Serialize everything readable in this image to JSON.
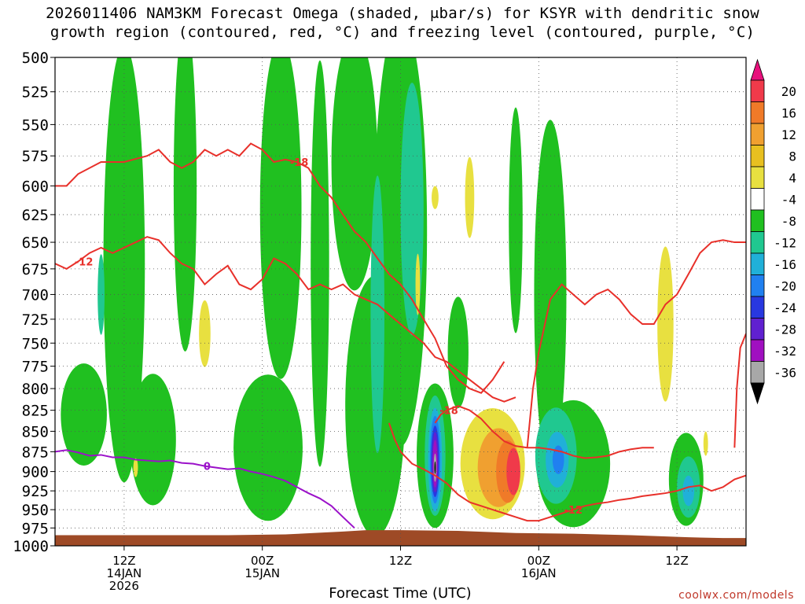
{
  "title_line1": "2026011406 NAM3KM Forecast Omega (shaded, μbar/s) for KSYR with dendritic snow",
  "title_line2": "growth region (contoured, red, °C) and freezing level (contoured, purple, °C)",
  "watermark": "coolwx.com/models",
  "colors": {
    "dendritic_contour": "#e8302a",
    "freezing_contour": "#9b11c9",
    "terrain": "#9e4a26",
    "grid": "#555555"
  },
  "chart_data": {
    "type": "heatmap",
    "xlabel": "Forecast Time (UTC)",
    "ylabel": "",
    "x_units": "forecast hour from 2026-01-14 06Z",
    "xlim": [
      0,
      60
    ],
    "ylim": [
      1000,
      500
    ],
    "y_ticks": [
      500,
      525,
      550,
      575,
      600,
      625,
      650,
      675,
      700,
      725,
      750,
      775,
      800,
      825,
      850,
      875,
      900,
      925,
      950,
      975,
      1000
    ],
    "x_ticks": [
      {
        "value": 6,
        "lines": [
          "12Z",
          "14JAN",
          "2026"
        ]
      },
      {
        "value": 18,
        "lines": [
          "00Z",
          "15JAN"
        ]
      },
      {
        "value": 30,
        "lines": [
          "12Z"
        ]
      },
      {
        "value": 42,
        "lines": [
          "00Z",
          "16JAN"
        ]
      },
      {
        "value": 54,
        "lines": [
          "12Z"
        ]
      }
    ],
    "colorbar": {
      "labels": [
        "20",
        "16",
        "12",
        "8",
        "4",
        "-4",
        "-8",
        "-12",
        "-16",
        "-20",
        "-24",
        "-28",
        "-32",
        "-36"
      ],
      "colors": [
        "#f03a4a",
        "#f07a28",
        "#f0a030",
        "#e8c020",
        "#e8e040",
        "#ffffff",
        "#20c020",
        "#20c890",
        "#20b0d8",
        "#2080f0",
        "#2838e0",
        "#6020d0",
        "#a010c0",
        "#a8a8a8"
      ],
      "top_color": "#e8107c",
      "bottom_color": "#000000"
    },
    "omega_regions": [
      {
        "value": -6,
        "x": 6.0,
        "p": 670,
        "rx": 1.8,
        "rp": 260
      },
      {
        "value": -6,
        "x": 11.3,
        "p": 600,
        "rx": 1.0,
        "rp": 200
      },
      {
        "value": -6,
        "x": 19.6,
        "p": 620,
        "rx": 1.8,
        "rp": 190
      },
      {
        "value": -6,
        "x": 23.0,
        "p": 670,
        "rx": 0.8,
        "rp": 220
      },
      {
        "value": -6,
        "x": 26.0,
        "p": 580,
        "rx": 2.0,
        "rp": 140
      },
      {
        "value": -6,
        "x": 27.8,
        "p": 820,
        "rx": 2.6,
        "rp": 150
      },
      {
        "value": -6,
        "x": 30.0,
        "p": 640,
        "rx": 2.3,
        "rp": 280
      },
      {
        "value": -6,
        "x": 18.5,
        "p": 870,
        "rx": 3.0,
        "rp": 90
      },
      {
        "value": -6,
        "x": 8.5,
        "p": 860,
        "rx": 2.0,
        "rp": 80
      },
      {
        "value": -6,
        "x": 2.5,
        "p": 830,
        "rx": 2.0,
        "rp": 60
      },
      {
        "value": -6,
        "x": 35.0,
        "p": 760,
        "rx": 0.9,
        "rp": 60
      },
      {
        "value": -6,
        "x": 40.0,
        "p": 630,
        "rx": 0.6,
        "rp": 100
      },
      {
        "value": -6,
        "x": 43.0,
        "p": 700,
        "rx": 1.4,
        "rp": 170
      },
      {
        "value": -6,
        "x": 45.0,
        "p": 890,
        "rx": 3.2,
        "rp": 80
      },
      {
        "value": -6,
        "x": 54.8,
        "p": 910,
        "rx": 1.5,
        "rp": 60
      },
      {
        "value": -6,
        "x": 33.0,
        "p": 880,
        "rx": 1.6,
        "rp": 90
      },
      {
        "value": -10,
        "x": 31.0,
        "p": 620,
        "rx": 1.0,
        "rp": 110
      },
      {
        "value": -10,
        "x": 28.0,
        "p": 720,
        "rx": 0.6,
        "rp": 140
      },
      {
        "value": -10,
        "x": 4.0,
        "p": 700,
        "rx": 0.3,
        "rp": 40
      },
      {
        "value": -10,
        "x": 43.5,
        "p": 880,
        "rx": 1.8,
        "rp": 60
      },
      {
        "value": -10,
        "x": 55.0,
        "p": 920,
        "rx": 1.0,
        "rp": 40
      },
      {
        "value": -10,
        "x": 33.0,
        "p": 880,
        "rx": 0.9,
        "rp": 75
      },
      {
        "value": -14,
        "x": 43.6,
        "p": 885,
        "rx": 1.0,
        "rp": 35
      },
      {
        "value": -14,
        "x": 33.0,
        "p": 885,
        "rx": 0.6,
        "rp": 65
      },
      {
        "value": -14,
        "x": 55.0,
        "p": 925,
        "rx": 0.5,
        "rp": 20
      },
      {
        "value": -18,
        "x": 43.7,
        "p": 885,
        "rx": 0.5,
        "rp": 18
      },
      {
        "value": -18,
        "x": 33.0,
        "p": 885,
        "rx": 0.45,
        "rp": 55
      },
      {
        "value": -22,
        "x": 33.0,
        "p": 887,
        "rx": 0.35,
        "rp": 45
      },
      {
        "value": -26,
        "x": 33.0,
        "p": 888,
        "rx": 0.28,
        "rp": 38
      },
      {
        "value": -30,
        "x": 33.0,
        "p": 890,
        "rx": 0.2,
        "rp": 30
      },
      {
        "value": -34,
        "x": 33.0,
        "p": 895,
        "rx": 0.12,
        "rp": 18
      },
      {
        "value": -40,
        "x": 33.0,
        "p": 895,
        "rx": 0.06,
        "rp": 8
      },
      {
        "value": 6,
        "x": 38.0,
        "p": 890,
        "rx": 2.8,
        "rp": 70
      },
      {
        "value": 6,
        "x": 33.0,
        "p": 610,
        "rx": 0.3,
        "rp": 10
      },
      {
        "value": 6,
        "x": 36.0,
        "p": 610,
        "rx": 0.4,
        "rp": 35
      },
      {
        "value": 6,
        "x": 53.0,
        "p": 730,
        "rx": 0.7,
        "rp": 80
      },
      {
        "value": 6,
        "x": 13.0,
        "p": 740,
        "rx": 0.5,
        "rp": 35
      },
      {
        "value": 6,
        "x": 7.0,
        "p": 895,
        "rx": 0.2,
        "rp": 12
      },
      {
        "value": 6,
        "x": 31.5,
        "p": 690,
        "rx": 0.2,
        "rp": 30
      },
      {
        "value": 6,
        "x": 56.5,
        "p": 865,
        "rx": 0.2,
        "rp": 15
      },
      {
        "value": 10,
        "x": 38.5,
        "p": 895,
        "rx": 1.8,
        "rp": 50
      },
      {
        "value": 14,
        "x": 39.3,
        "p": 900,
        "rx": 1.0,
        "rp": 40
      },
      {
        "value": 18,
        "x": 39.8,
        "p": 900,
        "rx": 0.6,
        "rp": 30
      }
    ],
    "series": [
      {
        "name": "-18",
        "role": "dendritic",
        "label_at": 21.2,
        "x": [
          0,
          1,
          2,
          4,
          5,
          6,
          8,
          9,
          10,
          11,
          12,
          13,
          14,
          15,
          16,
          17,
          18,
          19,
          20,
          21,
          22,
          23,
          24,
          25,
          26,
          27,
          28,
          29,
          30,
          31,
          32,
          33,
          34,
          35,
          36,
          37,
          38,
          38.5,
          39
        ],
        "y": [
          600,
          600,
          590,
          580,
          580,
          580,
          575,
          570,
          580,
          585,
          580,
          570,
          575,
          570,
          575,
          565,
          570,
          580,
          578,
          580,
          585,
          600,
          610,
          625,
          640,
          650,
          665,
          680,
          690,
          705,
          725,
          745,
          775,
          790,
          800,
          805,
          790,
          780,
          770
        ]
      },
      {
        "name": "-12",
        "role": "dendritic",
        "label_at": 2.5,
        "x": [
          0,
          1,
          2,
          3,
          4,
          5,
          6,
          7,
          8,
          9,
          10,
          11,
          12,
          13,
          14,
          15,
          16,
          17,
          18,
          19,
          20,
          21,
          22,
          23,
          24,
          25,
          26,
          27,
          28,
          29,
          30,
          31,
          32,
          33,
          34,
          35,
          36,
          37,
          38,
          39,
          40
        ],
        "y": [
          670,
          675,
          668,
          660,
          655,
          660,
          655,
          650,
          645,
          648,
          660,
          670,
          675,
          690,
          680,
          672,
          690,
          695,
          685,
          665,
          670,
          680,
          695,
          690,
          695,
          690,
          700,
          705,
          710,
          720,
          730,
          740,
          750,
          765,
          770,
          780,
          790,
          800,
          810,
          815,
          810
        ]
      },
      {
        "name": "-18",
        "role": "dendritic",
        "label_at": 34.2,
        "x": [
          33,
          33.5,
          34,
          35,
          36,
          37,
          38,
          39,
          40,
          41,
          42,
          43,
          44,
          45,
          46,
          47,
          48,
          49,
          50,
          51,
          52
        ],
        "y": [
          840,
          830,
          825,
          820,
          825,
          835,
          850,
          862,
          868,
          870,
          870,
          872,
          875,
          880,
          883,
          882,
          880,
          875,
          872,
          870,
          870
        ]
      },
      {
        "name": "-12",
        "role": "dendritic",
        "label_at": 45.0,
        "x": [
          29,
          29.5,
          30,
          31,
          32,
          33,
          34,
          35,
          36,
          37,
          38,
          39,
          40,
          41,
          42,
          43,
          44,
          45,
          46,
          47,
          48,
          49,
          50,
          51,
          52,
          53,
          54,
          55,
          56,
          57,
          58,
          59,
          60
        ],
        "y": [
          840,
          860,
          875,
          890,
          897,
          905,
          915,
          930,
          940,
          945,
          950,
          955,
          960,
          965,
          965,
          960,
          955,
          950,
          945,
          942,
          940,
          937,
          935,
          932,
          930,
          928,
          925,
          920,
          918,
          925,
          920,
          910,
          905
        ]
      },
      {
        "name": "",
        "role": "dendritic",
        "label_at": null,
        "x": [
          41,
          41.5,
          42,
          43,
          44,
          45,
          46,
          47,
          48,
          49,
          50,
          51,
          52,
          53,
          54,
          55,
          56,
          57,
          58,
          59,
          60
        ],
        "y": [
          870,
          800,
          760,
          705,
          690,
          700,
          710,
          700,
          695,
          705,
          720,
          730,
          730,
          710,
          700,
          680,
          660,
          650,
          648,
          650,
          650
        ]
      },
      {
        "name": "",
        "role": "dendritic",
        "label_at": null,
        "x": [
          59,
          59.2,
          59.5,
          60
        ],
        "y": [
          870,
          800,
          755,
          740
        ]
      },
      {
        "name": "0",
        "role": "freezing",
        "label_at": 13.2,
        "x": [
          0,
          1,
          2,
          3,
          4,
          5,
          6,
          7,
          8,
          9,
          10,
          11,
          12,
          13,
          14,
          15,
          16,
          17,
          18,
          19,
          20,
          21,
          22,
          23,
          24,
          25,
          26
        ],
        "y": [
          875,
          873,
          876,
          880,
          879,
          882,
          882,
          885,
          886,
          887,
          886,
          889,
          890,
          893,
          895,
          897,
          896,
          900,
          903,
          907,
          912,
          920,
          928,
          935,
          945,
          960,
          975
        ]
      }
    ],
    "terrain_surface_hpa": {
      "x": [
        0,
        5,
        10,
        15,
        20,
        25,
        27,
        30,
        35,
        40,
        45,
        50,
        55,
        58,
        60
      ],
      "y": [
        985,
        985,
        985,
        985,
        984,
        980,
        978,
        978,
        979,
        982,
        983,
        985,
        988,
        989,
        989
      ]
    }
  }
}
